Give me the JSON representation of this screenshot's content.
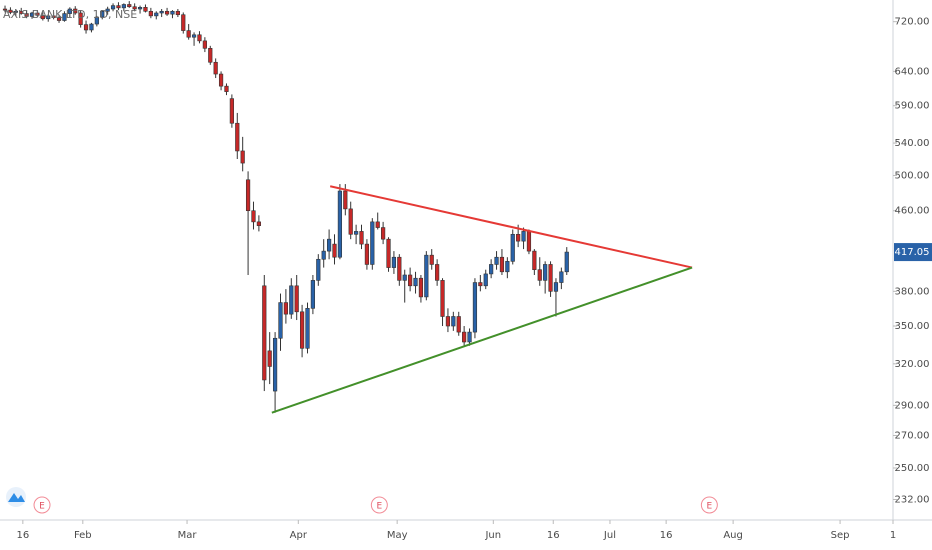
{
  "chart_data": {
    "type": "candlestick",
    "title": "AXIS BANK LTD, 1D, NSE",
    "log_scale": true,
    "up_color": "#2962a8",
    "down_color": "#c62828",
    "open": [
      742,
      740,
      736,
      738,
      734,
      729,
      735,
      731,
      725,
      730,
      727,
      722,
      734,
      742,
      735,
      715,
      706,
      716,
      728,
      738,
      742,
      748,
      744,
      750,
      746,
      742,
      745,
      738,
      730,
      735,
      738,
      733,
      738,
      732,
      705,
      694,
      698,
      688,
      676,
      654,
      636,
      618,
      600,
      566,
      530,
      495,
      460,
      448,
      385,
      330,
      300,
      340,
      370,
      360,
      385,
      362,
      332,
      365,
      390,
      410,
      418,
      425,
      412,
      482,
      462,
      435,
      438,
      425,
      405,
      448,
      442,
      430,
      402,
      412,
      390,
      395,
      385,
      392,
      375,
      414,
      405,
      390,
      358,
      350,
      358,
      345,
      337,
      345,
      388,
      385,
      396,
      405,
      412,
      398,
      408,
      435,
      428,
      438,
      418,
      400,
      390,
      405,
      380,
      388,
      398
    ],
    "high": [
      748,
      745,
      742,
      744,
      740,
      737,
      740,
      736,
      733,
      736,
      732,
      738,
      745,
      747,
      740,
      722,
      718,
      730,
      740,
      746,
      752,
      754,
      752,
      756,
      752,
      748,
      750,
      744,
      738,
      742,
      744,
      740,
      742,
      736,
      716,
      702,
      704,
      694,
      680,
      660,
      640,
      622,
      606,
      580,
      548,
      505,
      470,
      455,
      395,
      345,
      345,
      378,
      382,
      392,
      395,
      368,
      370,
      395,
      415,
      430,
      440,
      435,
      490,
      490,
      470,
      445,
      445,
      430,
      452,
      458,
      448,
      432,
      418,
      415,
      400,
      402,
      398,
      395,
      418,
      420,
      410,
      392,
      365,
      362,
      362,
      350,
      348,
      392,
      395,
      400,
      410,
      418,
      420,
      412,
      440,
      445,
      442,
      440,
      420,
      412,
      408,
      408,
      392,
      402,
      422
    ],
    "low": [
      736,
      733,
      730,
      732,
      726,
      725,
      728,
      722,
      720,
      724,
      718,
      720,
      728,
      732,
      710,
      700,
      702,
      712,
      724,
      732,
      738,
      740,
      738,
      744,
      738,
      734,
      736,
      726,
      724,
      728,
      730,
      726,
      728,
      700,
      690,
      680,
      684,
      670,
      650,
      630,
      612,
      605,
      560,
      520,
      505,
      395,
      440,
      438,
      300,
      305,
      285,
      330,
      352,
      356,
      355,
      325,
      328,
      360,
      385,
      402,
      410,
      405,
      410,
      455,
      430,
      425,
      420,
      400,
      400,
      440,
      425,
      398,
      396,
      385,
      370,
      380,
      378,
      370,
      372,
      400,
      385,
      350,
      345,
      346,
      342,
      333,
      334,
      340,
      380,
      382,
      392,
      400,
      395,
      392,
      405,
      422,
      420,
      415,
      395,
      385,
      378,
      375,
      358,
      382,
      395
    ],
    "close": [
      740,
      736,
      738,
      734,
      729,
      735,
      731,
      725,
      730,
      727,
      722,
      734,
      742,
      735,
      715,
      706,
      716,
      728,
      738,
      742,
      748,
      744,
      750,
      746,
      742,
      745,
      738,
      730,
      735,
      738,
      733,
      738,
      732,
      705,
      694,
      698,
      688,
      676,
      654,
      636,
      618,
      610,
      566,
      530,
      515,
      460,
      448,
      444,
      308,
      318,
      340,
      370,
      360,
      385,
      362,
      332,
      365,
      390,
      410,
      418,
      430,
      412,
      482,
      462,
      435,
      438,
      425,
      405,
      448,
      442,
      430,
      402,
      412,
      390,
      395,
      385,
      392,
      375,
      414,
      405,
      390,
      358,
      350,
      358,
      345,
      337,
      345,
      388,
      385,
      396,
      405,
      412,
      398,
      408,
      435,
      428,
      438,
      418,
      400,
      390,
      405,
      380,
      388,
      398,
      417.05
    ],
    "last_price": 417.05,
    "xlim": [
      -0.93,
      164.4
    ],
    "ylim": [
      221,
      758
    ],
    "yticks": [
      {
        "value": 720,
        "label": "720.00"
      },
      {
        "value": 640,
        "label": "640.00"
      },
      {
        "value": 590,
        "label": "590.00"
      },
      {
        "value": 540,
        "label": "540.00"
      },
      {
        "value": 500,
        "label": "500.00"
      },
      {
        "value": 460,
        "label": "460.00"
      },
      {
        "value": 380,
        "label": "380.00"
      },
      {
        "value": 350,
        "label": "350.00"
      },
      {
        "value": 320,
        "label": "320.00"
      },
      {
        "value": 290,
        "label": "290.00"
      },
      {
        "value": 270,
        "label": "270.00"
      },
      {
        "value": 250,
        "label": "250.00"
      },
      {
        "value": 232,
        "label": "232.00"
      }
    ],
    "xticks": [
      {
        "value": 3.3,
        "label": "16"
      },
      {
        "value": 14.4,
        "label": "Feb"
      },
      {
        "value": 33.7,
        "label": "Mar"
      },
      {
        "value": 54.3,
        "label": "Apr"
      },
      {
        "value": 72.6,
        "label": "May"
      },
      {
        "value": 90.4,
        "label": "Jun"
      },
      {
        "value": 101.5,
        "label": "16"
      },
      {
        "value": 112.0,
        "label": "Jul"
      },
      {
        "value": 122.4,
        "label": "16"
      },
      {
        "value": 134.8,
        "label": "Aug"
      },
      {
        "value": 154.6,
        "label": "Sep"
      },
      {
        "value": 164.4,
        "label": "1"
      }
    ],
    "trendlines": [
      {
        "color": "#e53935",
        "x": [
          60.2,
          127.2
        ],
        "y": [
          487.5,
          402
        ]
      },
      {
        "color": "#43902a",
        "x": [
          49.4,
          127.2
        ],
        "y": [
          285,
          402
        ]
      }
    ],
    "events": [
      {
        "x": 6.85,
        "label": "E"
      },
      {
        "x": 69.3,
        "label": "E"
      },
      {
        "x": 130.4,
        "label": "E"
      }
    ]
  }
}
